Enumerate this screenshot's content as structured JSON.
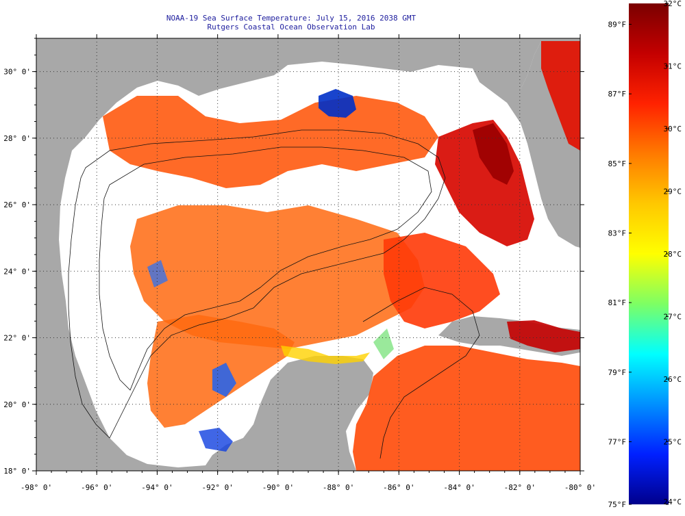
{
  "title": "NOAA-19 Sea Surface Temperature:  July 15, 2016 2038 GMT",
  "subtitle": "Rutgers Coastal Ocean Observation Lab",
  "map": {
    "lon_range": [
      -98,
      -80
    ],
    "lat_range": [
      18,
      31
    ],
    "lon_ticks": [
      {
        "lon": -98,
        "label": "-98° 0'"
      },
      {
        "lon": -96,
        "label": "-96° 0'"
      },
      {
        "lon": -94,
        "label": "-94° 0'"
      },
      {
        "lon": -92,
        "label": "-92° 0'"
      },
      {
        "lon": -90,
        "label": "-90° 0'"
      },
      {
        "lon": -88,
        "label": "-88° 0'"
      },
      {
        "lon": -86,
        "label": "-86° 0'"
      },
      {
        "lon": -84,
        "label": "-84° 0'"
      },
      {
        "lon": -82,
        "label": "-82° 0'"
      },
      {
        "lon": -80,
        "label": "-80° 0'"
      }
    ],
    "lat_ticks": [
      {
        "lat": 18,
        "label": "18° 0'"
      },
      {
        "lat": 20,
        "label": "20° 0'"
      },
      {
        "lat": 22,
        "label": "22° 0'"
      },
      {
        "lat": 24,
        "label": "24° 0'"
      },
      {
        "lat": 26,
        "label": "26° 0'"
      },
      {
        "lat": 28,
        "label": "28° 0'"
      },
      {
        "lat": 30,
        "label": "30° 0'"
      }
    ],
    "colors": {
      "land": "#a8a8a8",
      "no_data": "#ffffff",
      "grid": "#333333"
    }
  },
  "colorbar": {
    "celsius": [
      "32°C",
      "31°C",
      "30°C",
      "29°C",
      "28°C",
      "27°C",
      "26°C",
      "25°C",
      "24°C"
    ],
    "fahrenheit": [
      "89°F",
      "87°F",
      "85°F",
      "83°F",
      "81°F",
      "79°F",
      "77°F",
      "75°F"
    ],
    "colors": [
      "#7a0000",
      "#c40000",
      "#ff2200",
      "#ff7a00",
      "#ffc800",
      "#ffff00",
      "#7dff64",
      "#00ffff",
      "#0090ff",
      "#0020ff",
      "#00008c"
    ]
  }
}
